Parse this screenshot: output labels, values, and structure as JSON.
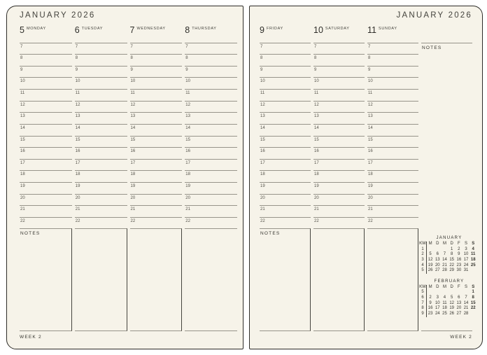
{
  "colors": {
    "paper": "#f6f3e9",
    "page_outline": "#2d2c28",
    "hour_rule": "#97948a",
    "divider": "#45443e",
    "ink": "#2e2d29",
    "muted_ink": "#55534b"
  },
  "hours": [
    "7",
    "8",
    "9",
    "10",
    "11",
    "12",
    "13",
    "14",
    "15",
    "16",
    "17",
    "18",
    "19",
    "20",
    "21",
    "22"
  ],
  "left_page": {
    "month_title": "JANUARY 2026",
    "days": [
      {
        "num": "5",
        "name": "MONDAY"
      },
      {
        "num": "6",
        "name": "TUESDAY"
      },
      {
        "num": "7",
        "name": "WEDNESDAY"
      },
      {
        "num": "8",
        "name": "THURSDAY"
      }
    ],
    "notes_label": "NOTES",
    "week_label": "WEEK 2"
  },
  "right_page": {
    "month_title": "JANUARY 2026",
    "days": [
      {
        "num": "9",
        "name": "FRIDAY"
      },
      {
        "num": "10",
        "name": "SATURDAY"
      },
      {
        "num": "11",
        "name": "SUNDAY"
      }
    ],
    "notes_column_label": "NOTES",
    "notes_label": "NOTES",
    "week_label": "WEEK 2",
    "mini_calendars": [
      {
        "title": "JANUARY",
        "week_col": "KW",
        "day_headers": [
          "M",
          "D",
          "M",
          "D",
          "F",
          "S",
          "S"
        ],
        "weeks": [
          [
            "1",
            "",
            "",
            "",
            "1",
            "2",
            "3",
            "4"
          ],
          [
            "2",
            "5",
            "6",
            "7",
            "8",
            "9",
            "10",
            "11"
          ],
          [
            "3",
            "12",
            "13",
            "14",
            "15",
            "16",
            "17",
            "18"
          ],
          [
            "4",
            "19",
            "20",
            "21",
            "22",
            "23",
            "24",
            "25"
          ],
          [
            "5",
            "26",
            "27",
            "28",
            "29",
            "30",
            "31",
            ""
          ]
        ]
      },
      {
        "title": "FEBRUARY",
        "week_col": "KW",
        "day_headers": [
          "M",
          "D",
          "M",
          "D",
          "F",
          "S",
          "S"
        ],
        "weeks": [
          [
            "5",
            "",
            "",
            "",
            "",
            "",
            "",
            "1"
          ],
          [
            "6",
            "2",
            "3",
            "4",
            "5",
            "6",
            "7",
            "8"
          ],
          [
            "7",
            "9",
            "10",
            "11",
            "12",
            "13",
            "14",
            "15"
          ],
          [
            "8",
            "16",
            "17",
            "18",
            "19",
            "20",
            "21",
            "22"
          ],
          [
            "9",
            "23",
            "24",
            "25",
            "26",
            "27",
            "28",
            ""
          ]
        ]
      }
    ]
  }
}
